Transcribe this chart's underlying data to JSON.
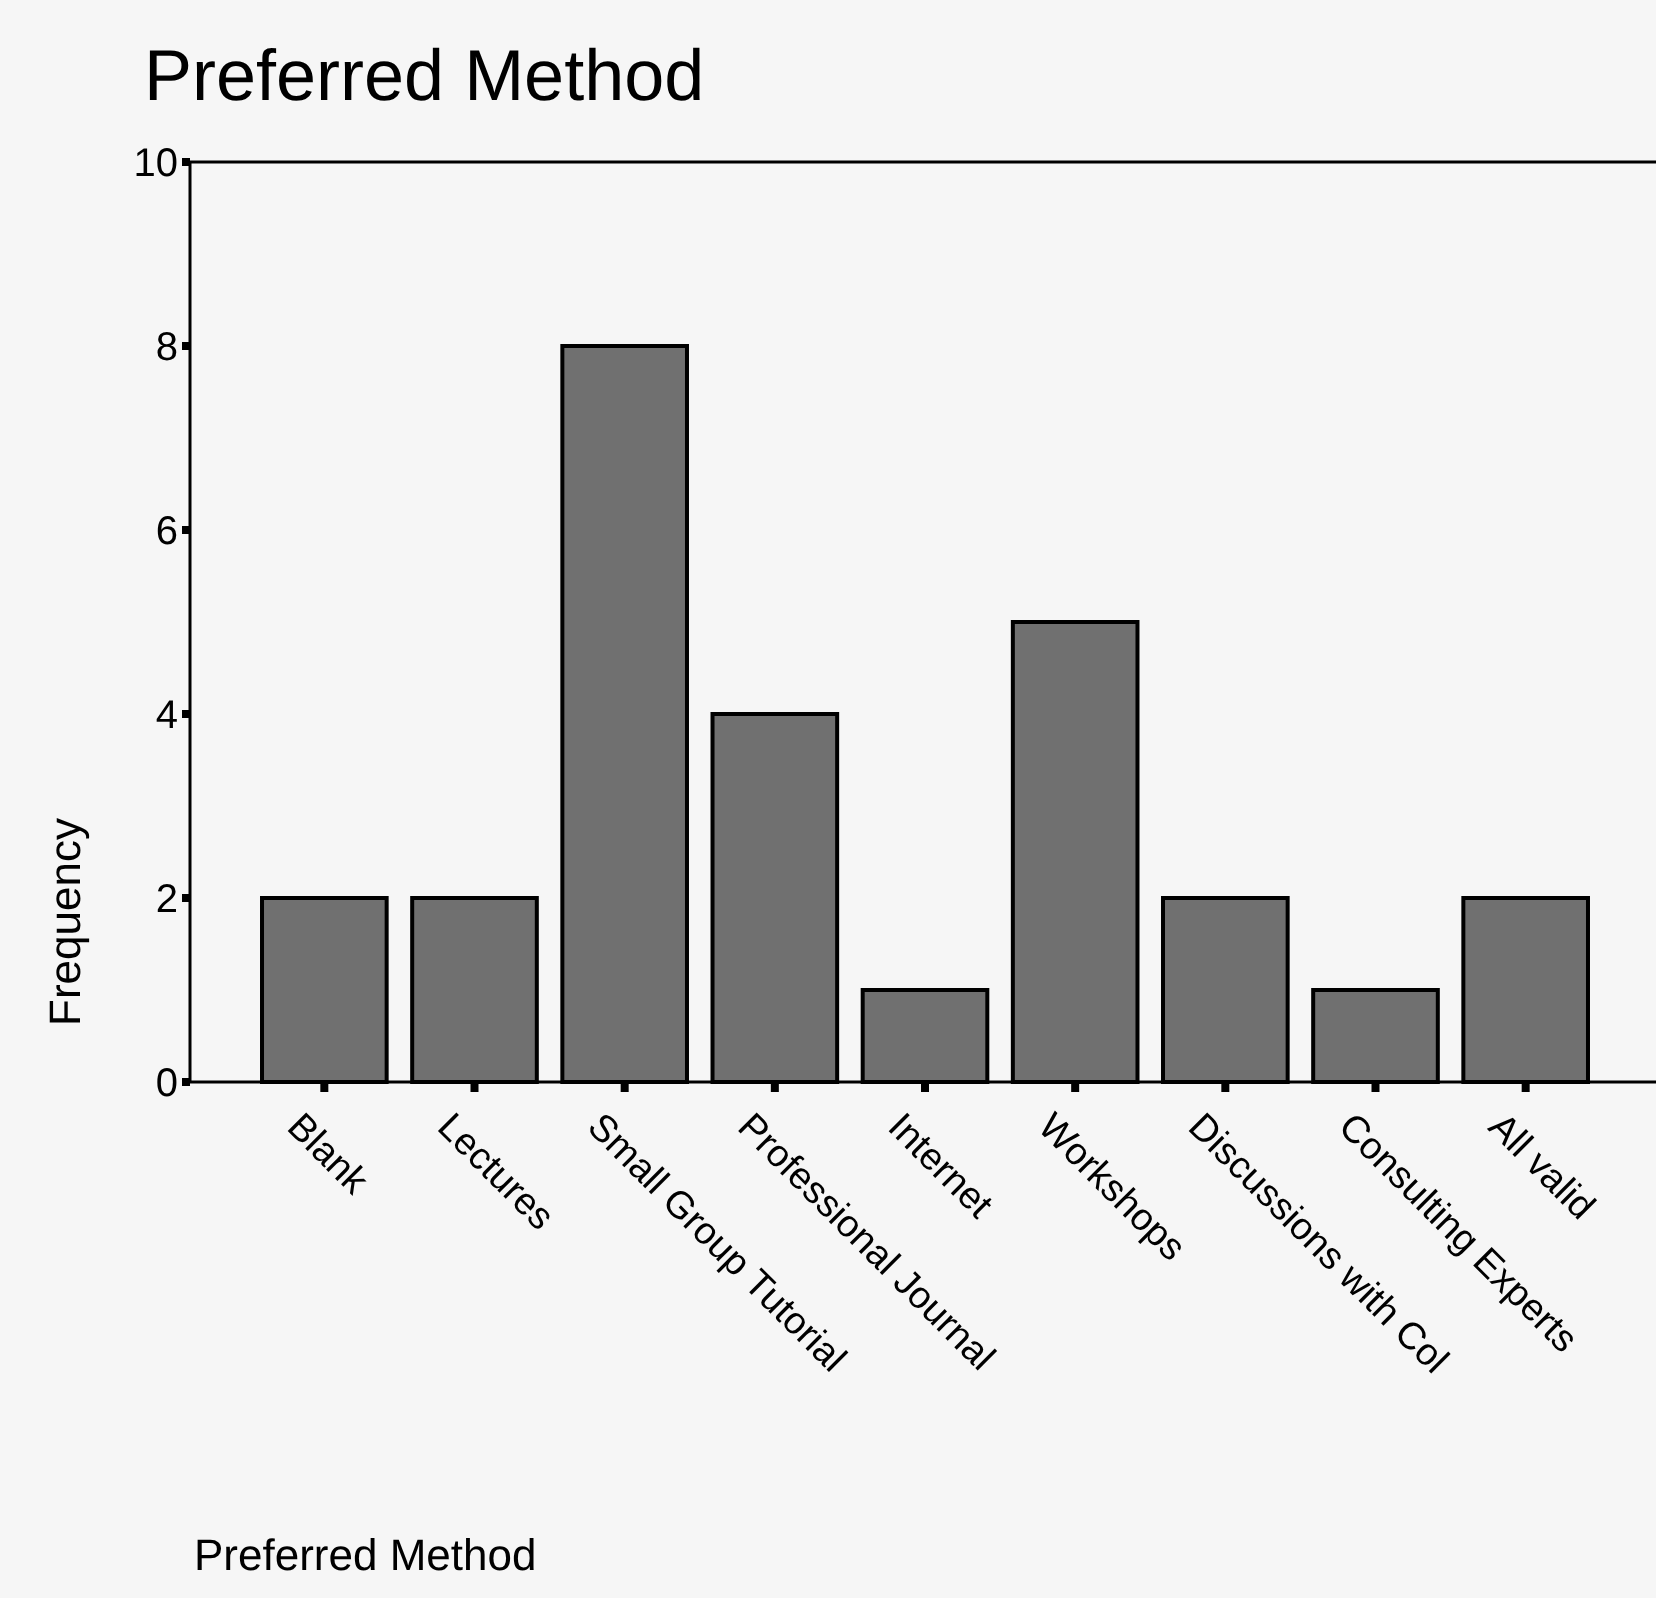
{
  "chart_data": {
    "type": "bar",
    "title": "Preferred Method",
    "xlabel": "Preferred Method",
    "ylabel": "Frequency",
    "categories": [
      "Blank",
      "Lectures",
      "Small Group Tutorial",
      "Professional Journal",
      "Internet",
      "Workshops",
      "Discussions with Col",
      "Consulting Experts",
      "All valid"
    ],
    "values": [
      2,
      2,
      8,
      4,
      1,
      5,
      2,
      1,
      2
    ],
    "color": "#707070",
    "ylim": [
      0,
      10
    ],
    "yticks": [
      0,
      2,
      4,
      6,
      8,
      10
    ],
    "grid": false
  }
}
